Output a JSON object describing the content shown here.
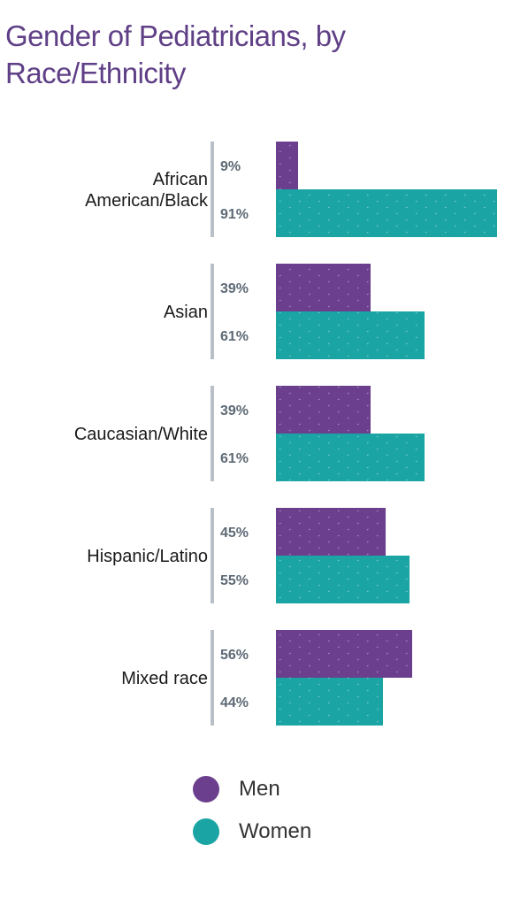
{
  "title": "Gender of Pediatricians, by Race/Ethnicity",
  "colors": {
    "men": "#6b3f8e",
    "women": "#1aa5a4",
    "divider": "#b8bfc6"
  },
  "chart_data": {
    "type": "bar",
    "orientation": "horizontal",
    "title": "Gender of Pediatricians, by Race/Ethnicity",
    "categories": [
      [
        "African",
        "American/Black"
      ],
      [
        "Asian"
      ],
      [
        "Caucasian/White"
      ],
      [
        "Hispanic/Latino"
      ],
      [
        "Mixed race"
      ]
    ],
    "series": [
      {
        "name": "Men",
        "values": [
          9,
          39,
          39,
          45,
          56
        ],
        "labels": [
          "9%",
          "39%",
          "39%",
          "45%",
          "56%"
        ]
      },
      {
        "name": "Women",
        "values": [
          91,
          61,
          61,
          55,
          44
        ],
        "labels": [
          "91%",
          "61%",
          "61%",
          "55%",
          "44%"
        ]
      }
    ],
    "xlim": [
      0,
      91
    ],
    "legend_position": "bottom",
    "grid": false
  },
  "legend": {
    "men": "Men",
    "women": "Women"
  }
}
